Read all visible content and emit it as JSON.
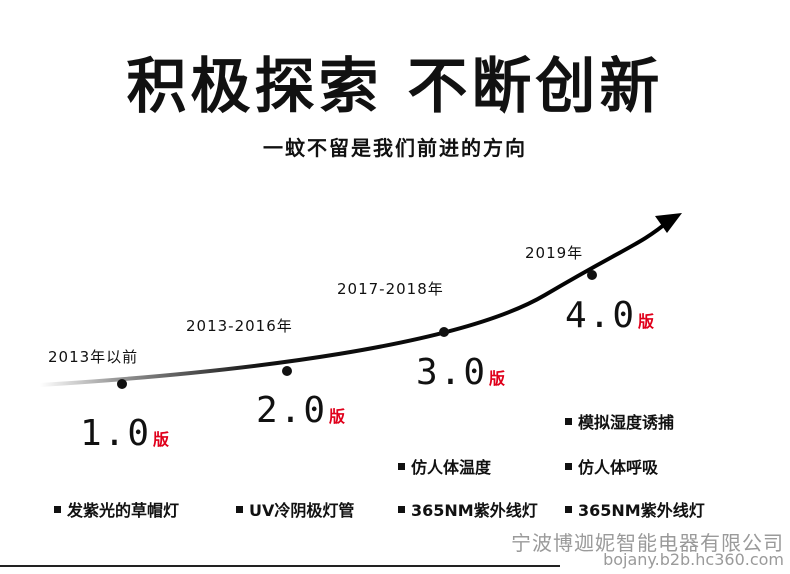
{
  "title": "积极探索  不断创新",
  "subtitle": "一蚊不留是我们前进的方向",
  "stages": [
    {
      "year": "2013年以前",
      "version": "1.0",
      "suffix": "版"
    },
    {
      "year": "2013-2016年",
      "version": "2.0",
      "suffix": "版"
    },
    {
      "year": "2017-2018年",
      "version": "3.0",
      "suffix": "版"
    },
    {
      "year": "2019年",
      "version": "4.0",
      "suffix": "版"
    }
  ],
  "features": {
    "col1": [
      "发紫光的草帽灯"
    ],
    "col2": [
      "UV冷阴极灯管"
    ],
    "col3": [
      "仿人体温度",
      "365NM紫外线灯"
    ],
    "col4": [
      "模拟湿度诱捕",
      "仿人体呼吸",
      "365NM紫外线灯"
    ]
  },
  "footer": {
    "company": "宁波博迦妮智能电器有限公司",
    "url": "bojany.b2b.hc360.com"
  }
}
